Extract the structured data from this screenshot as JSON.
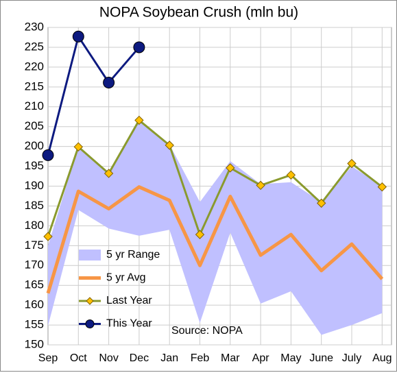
{
  "chart_data": {
    "type": "line",
    "title": "NOPA Soybean Crush (mln bu)",
    "source": "Source: NOPA",
    "categories": [
      "Sep",
      "Oct",
      "Nov",
      "Dec",
      "Jan",
      "Feb",
      "Mar",
      "Apr",
      "May",
      "June",
      "July",
      "Aug"
    ],
    "ylim": [
      150,
      230
    ],
    "yticks": [
      150,
      155,
      160,
      165,
      170,
      175,
      180,
      185,
      190,
      195,
      200,
      205,
      210,
      215,
      220,
      225,
      230
    ],
    "grid": true,
    "legend": "lower left",
    "range": {
      "name": "5 yr Range",
      "color": "#c0c0ff",
      "low": [
        154.8,
        184,
        179.3,
        177.5,
        179,
        155.5,
        178.3,
        160.4,
        163.5,
        152.5,
        155,
        158
      ],
      "high": [
        175,
        200,
        193,
        206.5,
        200.5,
        186,
        196.3,
        190.5,
        191,
        186,
        195,
        190
      ]
    },
    "series": [
      {
        "name": "5 yr Avg",
        "color": "#f79646",
        "marker": "none",
        "values": [
          163,
          188.7,
          184.3,
          189.8,
          186.4,
          170,
          187.4,
          172.6,
          177.8,
          168.7,
          175.4,
          166.6
        ]
      },
      {
        "name": "Last Year",
        "color": "#8a9a2e",
        "marker": "diamond",
        "values": [
          177.3,
          199.9,
          193.2,
          206.6,
          200.3,
          177.8,
          194.6,
          190.2,
          192.8,
          185.7,
          195.7,
          189.8
        ]
      },
      {
        "name": "This Year",
        "color": "#0d1a80",
        "marker": "circle",
        "values": [
          197.8,
          227.7,
          216.1,
          225.0,
          null,
          null,
          null,
          null,
          null,
          null,
          null,
          null
        ]
      }
    ]
  }
}
